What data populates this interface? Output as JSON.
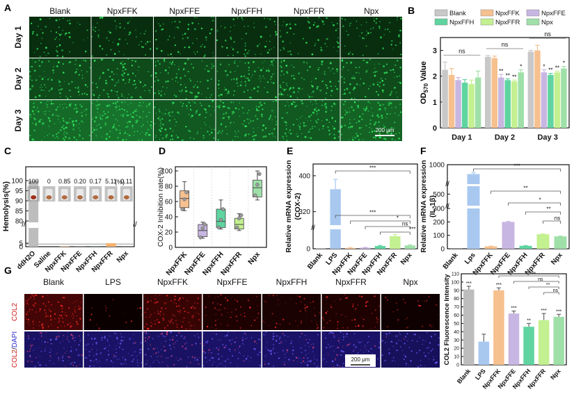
{
  "panel_labels": {
    "a": "A",
    "b": "B",
    "c": "C",
    "d": "D",
    "e": "E",
    "f": "F",
    "g": "G"
  },
  "panel_a": {
    "columns": [
      "Blank",
      "NpxFFK",
      "NpxFFE",
      "NpxFFH",
      "NpxFFR",
      "Npx"
    ],
    "rows": [
      "Day 1",
      "Day 2",
      "Day 3"
    ],
    "cell_density": [
      [
        0.25,
        0.25,
        0.25,
        0.25,
        0.25,
        0.25
      ],
      [
        0.55,
        0.55,
        0.55,
        0.55,
        0.55,
        0.55
      ],
      [
        0.9,
        1.0,
        0.7,
        0.75,
        0.7,
        0.85
      ]
    ],
    "cell_color": "#2fe05a",
    "scale_bar": "200 μm"
  },
  "panel_g_images": {
    "columns": [
      "Blank",
      "LPS",
      "NpxFFK",
      "NpxFFE",
      "NpxFFH",
      "NpxFFR",
      "Npx"
    ],
    "row1_label": "COL2",
    "row2_label_a": "COL2",
    "row2_label_sep": "/",
    "row2_label_b": "DAPI",
    "col2_intensity": [
      0.9,
      0.05,
      0.75,
      0.35,
      0.3,
      0.35,
      0.12
    ],
    "dapi_intensity": [
      0.7,
      0.75,
      0.7,
      0.75,
      0.75,
      0.75,
      0.6
    ],
    "scale_bar": "200 μm"
  },
  "chart_data": [
    {
      "id": "B",
      "type": "bar",
      "categories": [
        "Day 1",
        "Day 2",
        "Day 3"
      ],
      "ylabel_main": "OD",
      "ylabel_sub": "570",
      "ylabel_tail": " Value",
      "ylim": [
        0,
        3.5
      ],
      "yticks": [
        "0",
        "1",
        "2",
        "3"
      ],
      "series": [
        {
          "name": "Blank",
          "color": "#c8c8c8",
          "values": [
            2.25,
            2.75,
            2.95
          ],
          "errors": [
            0.3,
            0.05,
            0.05
          ]
        },
        {
          "name": "NpxFFK",
          "color": "#f6c08f",
          "values": [
            2.05,
            2.7,
            3.0
          ],
          "errors": [
            0.25,
            0.08,
            0.2
          ]
        },
        {
          "name": "NpxFFE",
          "color": "#c8b6e2",
          "values": [
            1.85,
            1.95,
            2.15
          ],
          "errors": [
            0.1,
            0.12,
            0.1
          ]
        },
        {
          "name": "NpxFFH",
          "color": "#5fd4a0",
          "values": [
            1.75,
            1.85,
            2.05
          ],
          "errors": [
            0.12,
            0.05,
            0.06
          ]
        },
        {
          "name": "NpxFFR",
          "color": "#c3f090",
          "values": [
            1.7,
            1.8,
            2.15
          ],
          "errors": [
            0.15,
            0.05,
            0.05
          ]
        },
        {
          "name": "Npx",
          "color": "#9fe0a8",
          "values": [
            1.95,
            2.15,
            2.3
          ],
          "errors": [
            0.25,
            0.1,
            0.08
          ]
        }
      ],
      "annotations": [
        {
          "text": "ns",
          "group": 0
        },
        {
          "text": "ns",
          "group": 1
        },
        {
          "text": "ns",
          "group": 2
        }
      ],
      "stars": [
        [
          "",
          "",
          "",
          "",
          "",
          ""
        ],
        [
          "",
          "",
          "**",
          "**",
          "**",
          "*"
        ],
        [
          "",
          "",
          "*",
          "**",
          "**",
          "*"
        ]
      ]
    },
    {
      "id": "C",
      "type": "bar",
      "categories": [
        "ddH2O",
        "Saline",
        "NpxFFK",
        "NpxFFE",
        "NpxFFH",
        "NpxFFR",
        "Npx"
      ],
      "values": [
        100,
        0,
        0.85,
        0.2,
        0.17,
        5.11,
        0.11
      ],
      "value_labels": [
        "100",
        "0",
        "0.85",
        "0.20",
        "0.17",
        "5.11",
        "0.11"
      ],
      "colors": [
        "#bdbdbd",
        "#c8c8c8",
        "#f6c08f",
        "#c8b6e2",
        "#5fd4a0",
        "#f6b26b",
        "#9fe0a8"
      ],
      "ylabel": "Hemolysis(%)",
      "yticks": [
        "0",
        "5",
        "80",
        "85",
        "90",
        "95",
        "100"
      ],
      "unit_note": "(%)"
    },
    {
      "id": "D",
      "type": "box",
      "categories": [
        "NpxFFK",
        "NpxFFE",
        "NpxFFH",
        "NpxFFR",
        "Npx"
      ],
      "colors": [
        "#f6c08f",
        "#c8b6e2",
        "#5fd4a0",
        "#c3f090",
        "#9fe0a8"
      ],
      "boxes": [
        {
          "min": 48,
          "q1": 52,
          "median": 64,
          "q3": 74,
          "max": 86,
          "points": [
            50,
            63,
            72
          ]
        },
        {
          "min": 12,
          "q1": 14,
          "median": 22,
          "q3": 30,
          "max": 33,
          "points": [
            13,
            25,
            30
          ]
        },
        {
          "min": 24,
          "q1": 26,
          "median": 34,
          "q3": 50,
          "max": 62,
          "points": [
            26,
            36,
            50
          ]
        },
        {
          "min": 22,
          "q1": 24,
          "median": 30,
          "q3": 38,
          "max": 44,
          "points": [
            26,
            38,
            42
          ]
        },
        {
          "min": 62,
          "q1": 66,
          "median": 78,
          "q3": 88,
          "max": 100,
          "points": [
            68,
            82,
            96
          ]
        }
      ],
      "ylabel": "COX-2 Inhibition rate(%)",
      "ylim": [
        0,
        100
      ],
      "yticks": [
        "0",
        "20",
        "40",
        "60",
        "80",
        "100"
      ]
    },
    {
      "id": "E",
      "type": "bar",
      "categories": [
        "Blank",
        "LPS",
        "NpxFFK",
        "NpxFFE",
        "NpxFFH",
        "NpxFFR",
        "Npx"
      ],
      "values": [
        1,
        370,
        3,
        4,
        10,
        45,
        12
      ],
      "errors": [
        0,
        22,
        1,
        1,
        2,
        6,
        2
      ],
      "colors": [
        "#c8c8c8",
        "#a8c8f0",
        "#f6c08f",
        "#c8b6e2",
        "#5fd4a0",
        "#c3f090",
        "#9fe0a8"
      ],
      "ylabel_1": "Relative mRNA expression",
      "ylabel_2": "(COX-2)",
      "yticks": [
        "0",
        "320",
        "400"
      ],
      "comparisons": [
        {
          "text": "***"
        },
        {
          "text": "***"
        },
        {
          "text": "*"
        },
        {
          "text": "ns"
        },
        {
          "text": "***"
        }
      ]
    },
    {
      "id": "F",
      "type": "bar",
      "categories": [
        "Blank",
        "Lps",
        "NpxFFK",
        "NpxFFE",
        "NpxFFH",
        "NpxFFR",
        "Npx"
      ],
      "values": [
        1,
        800,
        18,
        200,
        22,
        108,
        92
      ],
      "errors": [
        0,
        30,
        2,
        4,
        2,
        3,
        3
      ],
      "colors": [
        "#c8c8c8",
        "#a8c8f0",
        "#f6c08f",
        "#c8b6e2",
        "#5fd4a0",
        "#c3f090",
        "#9fe0a8"
      ],
      "ylabel_1": "Relative mRNA expression",
      "ylabel_2": "(IL-1β)",
      "yticks": [
        "0",
        "100",
        "200",
        "300",
        "500",
        "1000"
      ],
      "comparisons": [
        {
          "text": "***"
        },
        {
          "text": "**"
        },
        {
          "text": "*"
        },
        {
          "text": "**"
        },
        {
          "text": "ns"
        }
      ]
    },
    {
      "id": "G",
      "type": "bar",
      "categories": [
        "Blank",
        "LPS",
        "NpxFFK",
        "NpxFFE",
        "NpxFFH",
        "NpxFFR",
        "Npx"
      ],
      "values": [
        91,
        28,
        90,
        62,
        46,
        54,
        58
      ],
      "errors": [
        4,
        9,
        3,
        3,
        4,
        8,
        3
      ],
      "colors": [
        "#bdbdbd",
        "#a8c8f0",
        "#f6c08f",
        "#c8b6e2",
        "#5fd4a0",
        "#c3f090",
        "#9fe0a8"
      ],
      "star_labels": [
        "***",
        "",
        "***",
        "***",
        "**",
        "***",
        "***"
      ],
      "ylabel": "COL2 Fluorescence Intensity",
      "ylim": [
        0,
        110
      ],
      "yticks": [
        "0",
        "10",
        "20",
        "30",
        "40",
        "50",
        "60",
        "70",
        "80",
        "90",
        "100",
        "110"
      ],
      "comparisons": [
        {
          "text": "***"
        },
        {
          "text": "ns"
        },
        {
          "text": "**"
        },
        {
          "text": "ns"
        },
        {
          "text": "***"
        }
      ]
    }
  ]
}
